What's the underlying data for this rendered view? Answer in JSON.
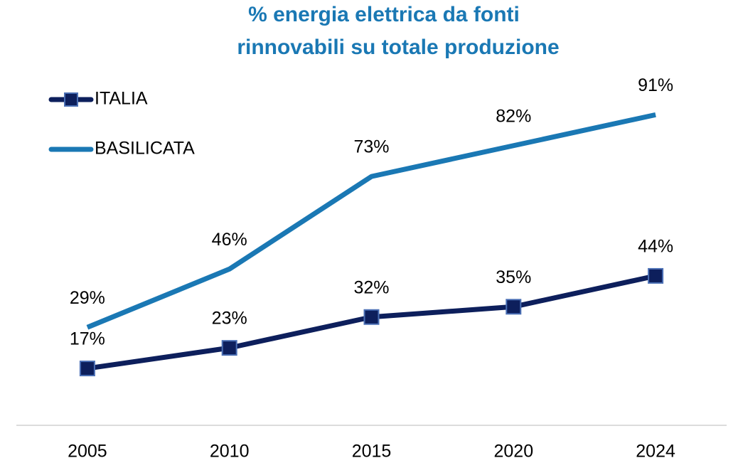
{
  "chart_data": {
    "type": "line",
    "title": [
      "% energia elettrica da fonti",
      "rinnovabili su totale produzione"
    ],
    "categories": [
      "2005",
      "2010",
      "2015",
      "2020",
      "2024"
    ],
    "series": [
      {
        "name": "ITALIA",
        "color": "#0d1f5c",
        "marker_edge": "#4a6fb5",
        "marker": "square",
        "values": [
          17,
          23,
          32,
          35,
          44
        ],
        "value_labels": [
          "17%",
          "23%",
          "32%",
          "35%",
          "44%"
        ]
      },
      {
        "name": "BASILICATA",
        "color": "#1a78b4",
        "values": [
          29,
          46,
          73,
          82,
          91
        ],
        "value_labels": [
          "29%",
          "46%",
          "73%",
          "82%",
          "91%"
        ]
      }
    ],
    "ylim": [
      0,
      100
    ],
    "legend": "upper left"
  }
}
